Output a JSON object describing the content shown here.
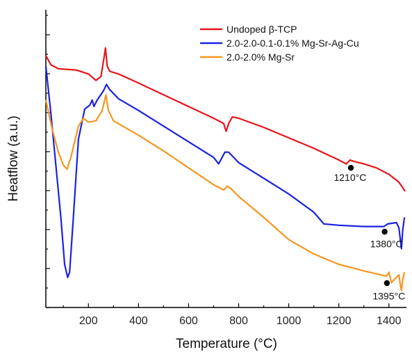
{
  "chart_data": {
    "type": "line",
    "title": "",
    "xlabel": "Temperature (°C)",
    "ylabel": "Heatflow (a.u.)",
    "xlim": [
      30,
      1470
    ],
    "ylim": [
      0,
      100
    ],
    "x_ticks": [
      200,
      400,
      600,
      800,
      1000,
      1200,
      1400
    ],
    "x_tick_labels": [
      "200",
      "400",
      "600",
      "800",
      "1000",
      "1200",
      "1400"
    ],
    "y_tick_labels_shown": false,
    "grid": false,
    "legend_position": "top-right",
    "series": [
      {
        "name": "Undoped β-TCP",
        "color": "#e8141b",
        "points": [
          [
            30,
            92
          ],
          [
            50,
            88.5
          ],
          [
            80,
            87
          ],
          [
            150,
            86.5
          ],
          [
            200,
            85
          ],
          [
            230,
            82.5
          ],
          [
            250,
            84
          ],
          [
            262,
            91
          ],
          [
            268,
            95
          ],
          [
            275,
            88
          ],
          [
            285,
            86
          ],
          [
            320,
            85
          ],
          [
            400,
            81.5
          ],
          [
            500,
            77
          ],
          [
            600,
            72.5
          ],
          [
            700,
            68
          ],
          [
            740,
            66
          ],
          [
            750,
            63
          ],
          [
            760,
            66
          ],
          [
            775,
            68.5
          ],
          [
            800,
            68
          ],
          [
            900,
            64.5
          ],
          [
            1000,
            60.5
          ],
          [
            1100,
            56.5
          ],
          [
            1200,
            52
          ],
          [
            1230,
            50.5
          ],
          [
            1245,
            52
          ],
          [
            1260,
            51.5
          ],
          [
            1300,
            50.5
          ],
          [
            1350,
            49
          ],
          [
            1400,
            46.5
          ],
          [
            1440,
            43.5
          ],
          [
            1465,
            40
          ]
        ]
      },
      {
        "name": "2.0-2.0-0.1-0.1% Mg-Sr-Ag-Cu",
        "color": "#1a22e0",
        "points": [
          [
            30,
            88
          ],
          [
            50,
            70
          ],
          [
            70,
            50
          ],
          [
            90,
            30
          ],
          [
            105,
            12
          ],
          [
            117,
            7
          ],
          [
            125,
            9
          ],
          [
            140,
            30
          ],
          [
            160,
            60
          ],
          [
            185,
            71.5
          ],
          [
            205,
            73
          ],
          [
            215,
            75
          ],
          [
            222,
            72.5
          ],
          [
            235,
            75
          ],
          [
            260,
            78.5
          ],
          [
            272,
            81
          ],
          [
            285,
            79
          ],
          [
            320,
            75.5
          ],
          [
            400,
            71
          ],
          [
            500,
            65
          ],
          [
            600,
            59
          ],
          [
            700,
            53
          ],
          [
            720,
            50.5
          ],
          [
            745,
            55
          ],
          [
            760,
            55
          ],
          [
            800,
            51
          ],
          [
            900,
            45
          ],
          [
            1000,
            39
          ],
          [
            1100,
            32
          ],
          [
            1140,
            27.5
          ],
          [
            1200,
            27
          ],
          [
            1300,
            26.5
          ],
          [
            1380,
            26.5
          ],
          [
            1395,
            27.5
          ],
          [
            1430,
            28
          ],
          [
            1440,
            26
          ],
          [
            1450,
            18
          ],
          [
            1455,
            25
          ],
          [
            1462,
            30
          ]
        ]
      },
      {
        "name": "2.0-2.0% Mg-Sr",
        "color": "#f5961e",
        "points": [
          [
            30,
            75
          ],
          [
            55,
            64
          ],
          [
            80,
            55
          ],
          [
            100,
            50
          ],
          [
            115,
            48.5
          ],
          [
            130,
            53
          ],
          [
            160,
            65
          ],
          [
            180,
            68
          ],
          [
            200,
            66.5
          ],
          [
            230,
            67
          ],
          [
            255,
            71
          ],
          [
            270,
            77
          ],
          [
            280,
            71
          ],
          [
            300,
            67
          ],
          [
            400,
            61.5
          ],
          [
            500,
            55.5
          ],
          [
            600,
            49
          ],
          [
            700,
            42.5
          ],
          [
            740,
            40.5
          ],
          [
            755,
            42
          ],
          [
            770,
            41
          ],
          [
            800,
            38
          ],
          [
            900,
            30
          ],
          [
            1000,
            21.5
          ],
          [
            1100,
            16
          ],
          [
            1200,
            12
          ],
          [
            1300,
            9.5
          ],
          [
            1390,
            7.5
          ],
          [
            1400,
            9
          ],
          [
            1410,
            5
          ],
          [
            1425,
            6.5
          ],
          [
            1440,
            8
          ],
          [
            1446,
            4
          ],
          [
            1450,
            2
          ],
          [
            1455,
            6
          ],
          [
            1462,
            9
          ]
        ]
      }
    ],
    "annotations": [
      {
        "text": "1210°C",
        "marker_x": 1248,
        "marker_y": 49,
        "label_x": 1180,
        "label_y": 44
      },
      {
        "text": "1380°C",
        "marker_x": 1383,
        "marker_y": 24.5,
        "label_x": 1325,
        "label_y": 18.5
      },
      {
        "text": "1395°C",
        "marker_x": 1392,
        "marker_y": 4.8,
        "label_x": 1335,
        "label_y": -1.5
      }
    ]
  }
}
